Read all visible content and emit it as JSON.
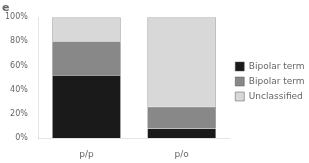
{
  "chart_data": {
    "type": "bar",
    "title": "e",
    "categories": [
      "p/p",
      "p/o"
    ],
    "series": [
      {
        "name": "Bipolar terminals (+)",
        "color": "#1a1a1a",
        "values": [
          52,
          8
        ]
      },
      {
        "name": "Bipolar terminals (-)",
        "color": "#888888",
        "values": [
          28,
          18
        ]
      },
      {
        "name": "Unclassified",
        "color": "#d8d8d8",
        "values": [
          20,
          74
        ]
      }
    ],
    "stacked": true,
    "ylim": [
      0,
      100
    ],
    "yticks": [
      {
        "value": 0,
        "label": "0%"
      },
      {
        "value": 20,
        "label": "20%"
      },
      {
        "value": 40,
        "label": "40%"
      },
      {
        "value": 60,
        "label": "60%"
      },
      {
        "value": 80,
        "label": "80%"
      },
      {
        "value": 100,
        "label": "100%"
      }
    ],
    "grid": false,
    "legend": "right"
  }
}
